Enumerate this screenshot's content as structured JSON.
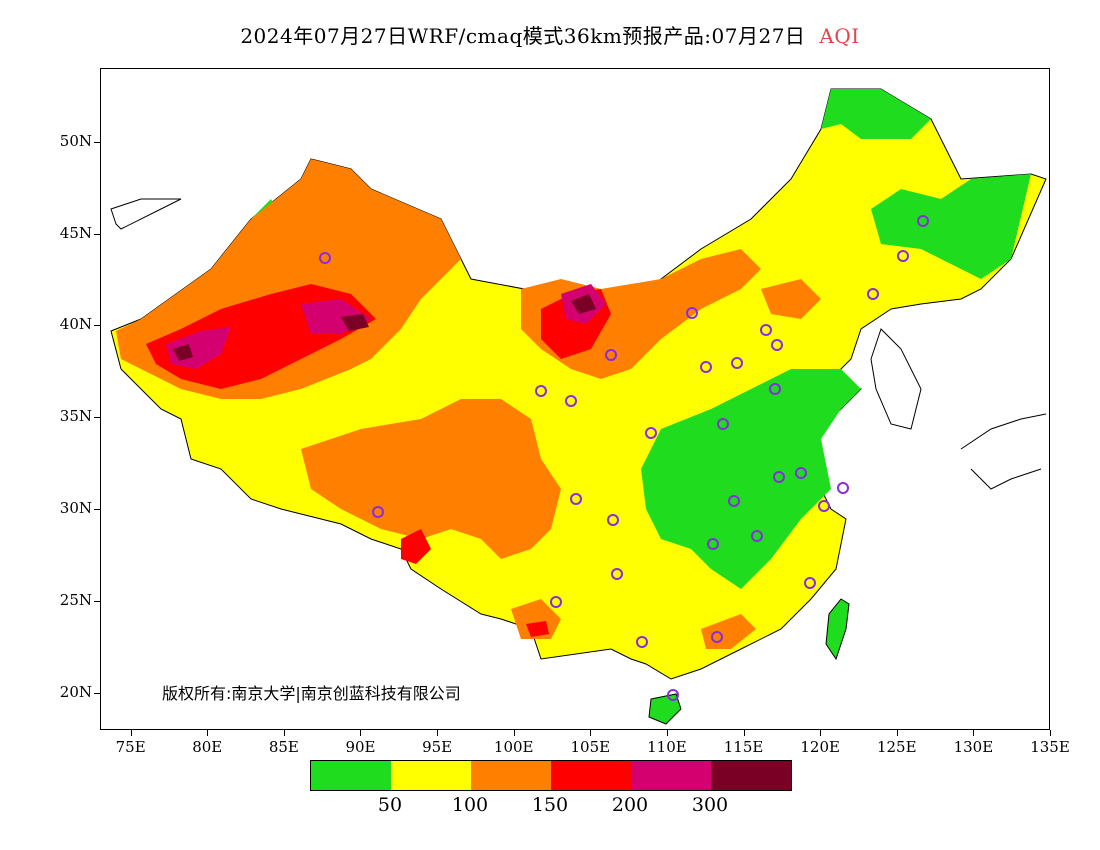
{
  "title": {
    "main": "2024年07月27日WRF/cmaq模式36km预报产品:07月27日",
    "variable": "AQI"
  },
  "map": {
    "lon_range": [
      73,
      135
    ],
    "lat_range": [
      18,
      54
    ],
    "x_ticks": [
      "75E",
      "80E",
      "85E",
      "90E",
      "95E",
      "100E",
      "105E",
      "110E",
      "115E",
      "120E",
      "125E",
      "130E",
      "135E"
    ],
    "y_ticks": [
      "20N",
      "25N",
      "30N",
      "35N",
      "40N",
      "45N",
      "50N"
    ],
    "copyright": "版权所有:南京大学|南京创蓝科技有限公司",
    "colors": {
      "background": "#ffffff",
      "good": "#1fdc1f",
      "moderate": "#ffff00",
      "unhealthy_sensitive": "#ff7f00",
      "unhealthy": "#ff0000",
      "very_unhealthy": "#d4006f",
      "hazardous": "#7a0026",
      "station_marker": "#8a2be2"
    }
  },
  "legend": {
    "colors": [
      "#1fdc1f",
      "#ffff00",
      "#ff7f00",
      "#ff0000",
      "#d4006f",
      "#7a0026"
    ],
    "labels": [
      "50",
      "100",
      "150",
      "200",
      "300"
    ]
  }
}
